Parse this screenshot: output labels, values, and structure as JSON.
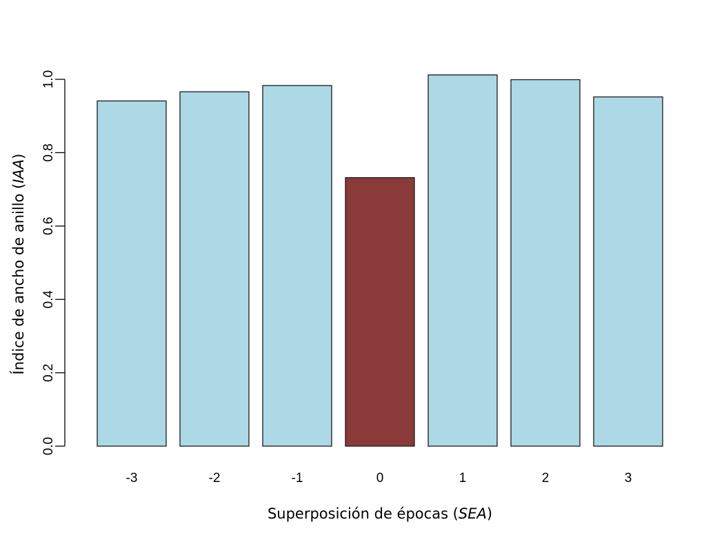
{
  "chart_data": {
    "type": "bar",
    "title": "",
    "categories": [
      "-3",
      "-2",
      "-1",
      "0",
      "1",
      "2",
      "3"
    ],
    "values": [
      0.941,
      0.966,
      0.983,
      0.732,
      1.012,
      0.999,
      0.952
    ],
    "bar_colors": [
      "#add8e6",
      "#add8e6",
      "#add8e6",
      "#8b3a3a",
      "#add8e6",
      "#add8e6",
      "#add8e6"
    ],
    "border_color": "#1a1a1a",
    "xlabel": {
      "prefix": "Superposición de épocas (",
      "italic": "SEA",
      "suffix": ")"
    },
    "ylabel": {
      "prefix": "Índice de ancho de anillo (",
      "italic": "IAA",
      "suffix": ")"
    },
    "ylim": [
      0,
      1.0
    ],
    "yticks": [
      "0.0",
      "0.2",
      "0.4",
      "0.6",
      "0.8",
      "1.0"
    ],
    "grid": false,
    "legend": "none"
  }
}
